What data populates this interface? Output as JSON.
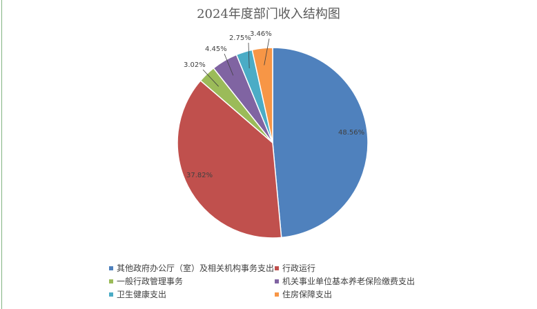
{
  "chart_data": {
    "type": "pie",
    "title": "2024年度部门收入结构图",
    "categories": [
      "其他政府办公厅（室）及相关机构事务支出",
      "行政运行",
      "一般行政管理事务",
      "机关事业单位基本养老保险缴费支出",
      "卫生健康支出",
      "住房保障支出"
    ],
    "values": [
      48.56,
      37.82,
      3.02,
      4.45,
      2.75,
      3.46
    ],
    "labels": [
      "48.56%",
      "37.82%",
      "3.02%",
      "4.45%",
      "2.75%",
      "3.46%"
    ],
    "colors": [
      "#4f81bd",
      "#c0504d",
      "#9bbb59",
      "#8064a2",
      "#4bacc6",
      "#f79646"
    ],
    "legend_position": "bottom",
    "start_angle_deg": 0,
    "direction": "clockwise"
  }
}
